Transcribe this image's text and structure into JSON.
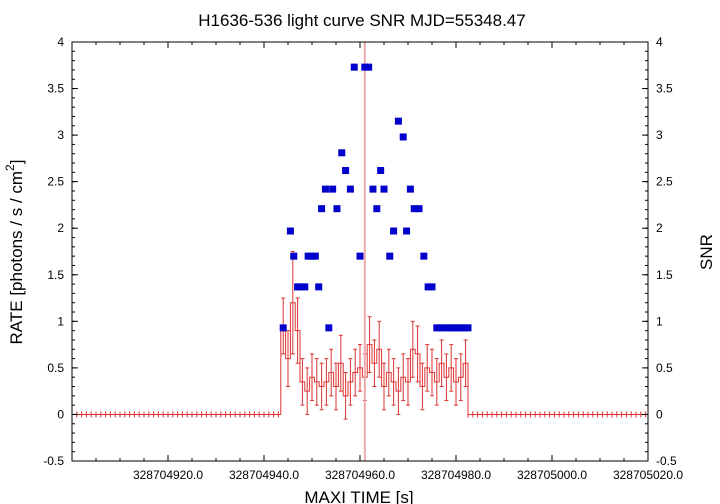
{
  "chart_data": {
    "type": "scatter",
    "title": "H1636-536 light curve  SNR MJD=55348.47",
    "xlabel": "MAXI TIME [s]",
    "ylabel_left": "RATE [photons / s / cm",
    "ylabel_left_sup": "2",
    "ylabel_left_end": "]",
    "ylabel_right": "SNR",
    "xlim": [
      328704900.0,
      328705020.0
    ],
    "ylim": [
      -0.5,
      4.0
    ],
    "x_ticks": [
      328704920.0,
      328704940.0,
      328704960.0,
      328704980.0,
      328705000.0,
      328705020.0
    ],
    "x_tick_labels": [
      "328704920.0",
      "328704940.0",
      "328704960.0",
      "328704980.0",
      "328705000.0",
      "328705020.0"
    ],
    "y_ticks": [
      -0.5,
      0,
      0.5,
      1,
      1.5,
      2,
      2.5,
      3,
      3.5,
      4
    ],
    "y_tick_labels": [
      "-0.5",
      "0",
      "0.5",
      "1",
      "1.5",
      "2",
      "2.5",
      "3",
      "3.5",
      "4"
    ],
    "vertical_line_x": 328704961.0,
    "colors": {
      "rate": "#dd3333",
      "snr": "#0000cc",
      "marker_line": "#f0a8a8"
    },
    "snr": {
      "x": [
        328704944.0,
        328704945.5,
        328704946.2,
        328704947.0,
        328704947.8,
        328704948.5,
        328704949.2,
        328704950.0,
        328704950.7,
        328704951.4,
        328704952.0,
        328704952.8,
        328704953.5,
        328704954.3,
        328704955.2,
        328704956.2,
        328704957.0,
        328704958.0,
        328704958.8,
        328704960.0,
        328704961.0,
        328704961.8,
        328704962.7,
        328704963.5,
        328704964.3,
        328704965.0,
        328704966.2,
        328704967.0,
        328704968.0,
        328704969.0,
        328704969.7,
        328704970.5,
        328704971.3,
        328704972.3,
        328704973.3,
        328704974.2,
        328704975.0,
        328704976.0,
        328704977.0,
        328704978.0,
        328704978.7,
        328704979.5,
        328704980.2,
        328704981.0,
        328704981.7,
        328704982.5
      ],
      "y": [
        0.93,
        1.97,
        1.7,
        1.37,
        1.37,
        1.37,
        1.7,
        1.7,
        1.7,
        1.37,
        2.21,
        2.42,
        0.93,
        2.42,
        2.21,
        2.81,
        2.62,
        2.42,
        3.73,
        1.7,
        3.73,
        3.73,
        2.42,
        2.21,
        2.62,
        2.42,
        1.7,
        1.97,
        3.15,
        2.98,
        1.97,
        2.42,
        2.21,
        2.21,
        1.7,
        1.37,
        1.37,
        0.93,
        0.93,
        0.93,
        0.93,
        0.93,
        0.93,
        0.93,
        0.93,
        0.93
      ]
    },
    "rate": {
      "bin_width": 1.0,
      "x": [
        328704944.0,
        328704945.0,
        328704946.0,
        328704947.0,
        328704948.0,
        328704949.0,
        328704950.0,
        328704951.0,
        328704952.0,
        328704953.0,
        328704954.0,
        328704955.0,
        328704956.0,
        328704957.0,
        328704958.0,
        328704959.0,
        328704960.0,
        328704961.0,
        328704962.0,
        328704963.0,
        328704964.0,
        328704965.0,
        328704966.0,
        328704967.0,
        328704968.0,
        328704969.0,
        328704970.0,
        328704971.0,
        328704972.0,
        328704973.0,
        328704974.0,
        328704975.0,
        328704976.0,
        328704977.0,
        328704978.0,
        328704979.0,
        328704980.0,
        328704981.0,
        328704982.0
      ],
      "y": [
        0.95,
        0.6,
        1.2,
        0.9,
        0.35,
        0.25,
        0.4,
        0.35,
        0.3,
        0.35,
        0.45,
        0.3,
        0.55,
        0.2,
        0.35,
        0.45,
        0.5,
        0.4,
        0.75,
        0.55,
        0.7,
        0.3,
        0.45,
        0.35,
        0.25,
        0.4,
        0.35,
        0.7,
        0.65,
        0.3,
        0.5,
        0.45,
        0.35,
        0.55,
        0.4,
        0.5,
        0.35,
        0.4,
        0.55
      ],
      "err": [
        0.3,
        0.3,
        0.55,
        0.35,
        0.25,
        0.25,
        0.25,
        0.25,
        0.25,
        0.25,
        0.25,
        0.25,
        0.3,
        0.25,
        0.25,
        0.25,
        0.25,
        0.25,
        0.3,
        0.25,
        0.3,
        0.25,
        0.25,
        0.25,
        0.25,
        0.25,
        0.25,
        0.3,
        0.3,
        0.25,
        0.25,
        0.25,
        0.25,
        0.25,
        0.25,
        0.25,
        0.25,
        0.25,
        0.25
      ],
      "zero_ranges": [
        [
          328704900.0,
          328704943.5
        ],
        [
          328704982.5,
          328705020.0
        ]
      ]
    }
  }
}
